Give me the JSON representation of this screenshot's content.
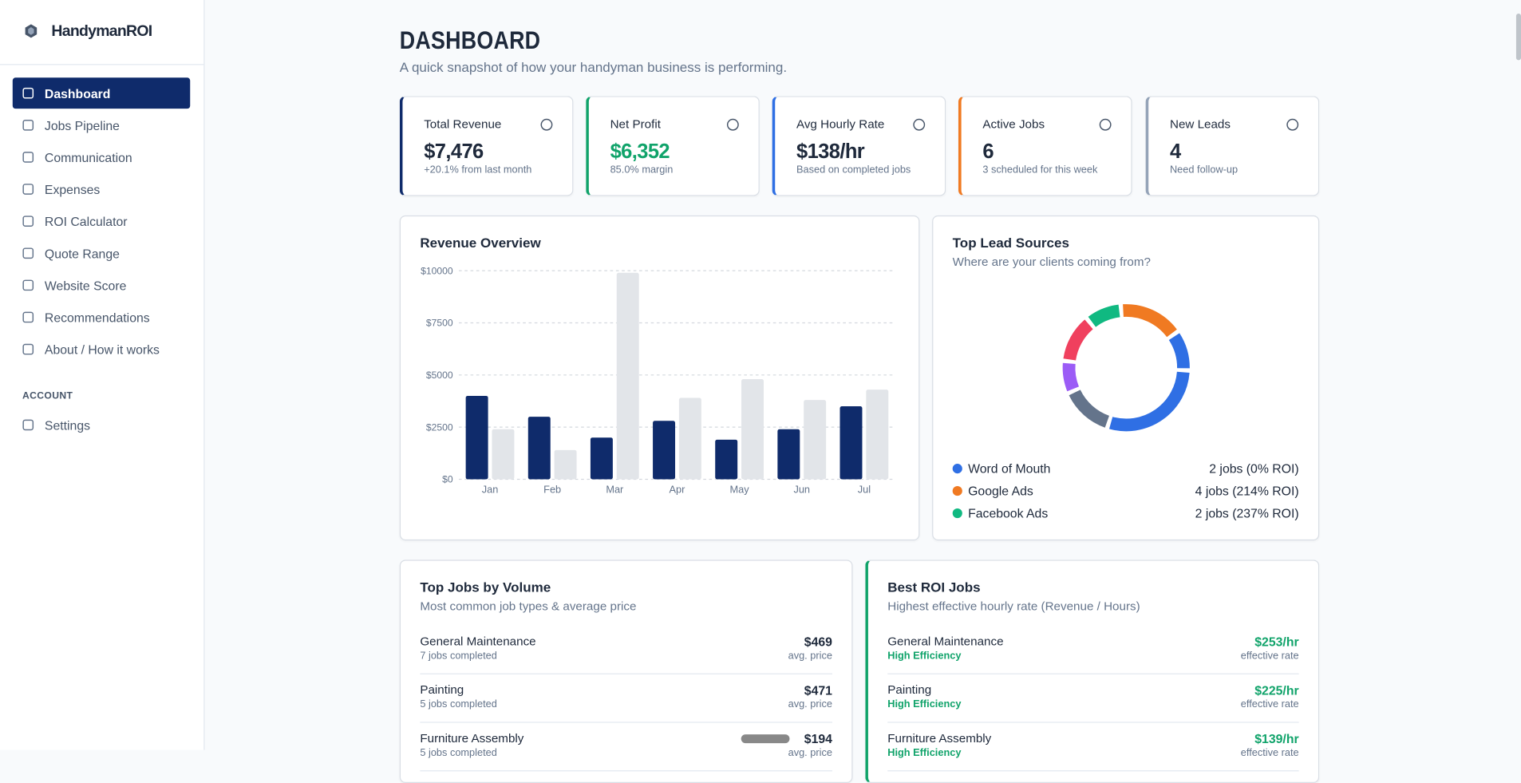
{
  "sidebar": {
    "brand": "HandymanROI",
    "nav": [
      "Dashboard",
      "Jobs Pipeline",
      "Communication",
      "Expenses",
      "ROI Calculator",
      "Quote Range",
      "Website Score",
      "Recommendations",
      "About / How it works"
    ],
    "account_heading": "ACCOUNT",
    "account_nav": [
      "Settings"
    ]
  },
  "header": {
    "title": "DASHBOARD",
    "subtitle": "A quick snapshot of how your handyman business is performing."
  },
  "stats": [
    {
      "label": "Total Revenue",
      "value": "$7,476",
      "sub": "+20.1% from last month",
      "color": "#0f2b6b"
    },
    {
      "label": "Net Profit",
      "value": "$6,352",
      "sub": "85.0% margin",
      "color": "#10a36a"
    },
    {
      "label": "Avg Hourly Rate",
      "value": "$138/hr",
      "sub": "Based on completed jobs",
      "color": "#2f6fe4"
    },
    {
      "label": "Active Jobs",
      "value": "6",
      "sub": "3 scheduled for this week",
      "color": "#f07a22"
    },
    {
      "label": "New Leads",
      "value": "4",
      "sub": "Need follow-up",
      "color": "#94a3b8"
    }
  ],
  "revenue_chart": {
    "type": "bar",
    "title": "Revenue Overview",
    "categories": [
      "Jan",
      "Feb",
      "Mar",
      "Apr",
      "May",
      "Jun",
      "Jul"
    ],
    "series": [
      {
        "color": "#0f2b6b",
        "values": [
          4000,
          3000,
          2000,
          2800,
          1900,
          2400,
          3500
        ]
      },
      {
        "color": "#e2e5e9",
        "values": [
          2400,
          1400,
          9900,
          3900,
          4800,
          3800,
          4300
        ]
      }
    ],
    "ylim": [
      0,
      10000
    ],
    "yticks": [
      {
        "value": 0,
        "label": "$0"
      },
      {
        "value": 2500,
        "label": "$2500"
      },
      {
        "value": 5000,
        "label": "$5000"
      },
      {
        "value": 7500,
        "label": "$7500"
      },
      {
        "value": 10000,
        "label": "$10000"
      }
    ],
    "grid": true
  },
  "lead_sources": {
    "type": "donut",
    "title": "Top Lead Sources",
    "subtitle": "Where are your clients coming from?",
    "segments": [
      {
        "color": "#f07a22",
        "value": 16
      },
      {
        "color": "#2f6fe4",
        "value": 10
      },
      {
        "color": "#2f6fe4",
        "value": 28
      },
      {
        "color": "#64748b",
        "value": 13
      },
      {
        "color": "#9b5cf6",
        "value": 8
      },
      {
        "color": "#f0405e",
        "value": 12
      },
      {
        "color": "#10b981",
        "value": 9
      }
    ],
    "legend": [
      {
        "name": "Word of Mouth",
        "color": "#2f6fe4",
        "text": "2 jobs (0% ROI)"
      },
      {
        "name": "Google Ads",
        "color": "#f07a22",
        "text": "4 jobs (214% ROI)"
      },
      {
        "name": "Facebook Ads",
        "color": "#10b981",
        "text": "2 jobs (237% ROI)"
      }
    ]
  },
  "top_jobs": {
    "title": "Top Jobs by Volume",
    "subtitle": "Most common job types & average price",
    "rows": [
      {
        "name": "General Maintenance",
        "sub": "7 jobs completed",
        "value": "$469",
        "unit": "avg. price"
      },
      {
        "name": "Painting",
        "sub": "5 jobs completed",
        "value": "$471",
        "unit": "avg. price"
      },
      {
        "name": "Furniture Assembly",
        "sub": "5 jobs completed",
        "value": "$194",
        "unit": "avg. price"
      }
    ]
  },
  "best_roi": {
    "title": "Best ROI Jobs",
    "subtitle": "Highest effective hourly rate (Revenue / Hours)",
    "rows": [
      {
        "name": "General Maintenance",
        "sub": "High Efficiency",
        "value": "$253/hr",
        "unit": "effective rate"
      },
      {
        "name": "Painting",
        "sub": "High Efficiency",
        "value": "$225/hr",
        "unit": "effective rate"
      },
      {
        "name": "Furniture Assembly",
        "sub": "High Efficiency",
        "value": "$139/hr",
        "unit": "effective rate"
      }
    ]
  }
}
